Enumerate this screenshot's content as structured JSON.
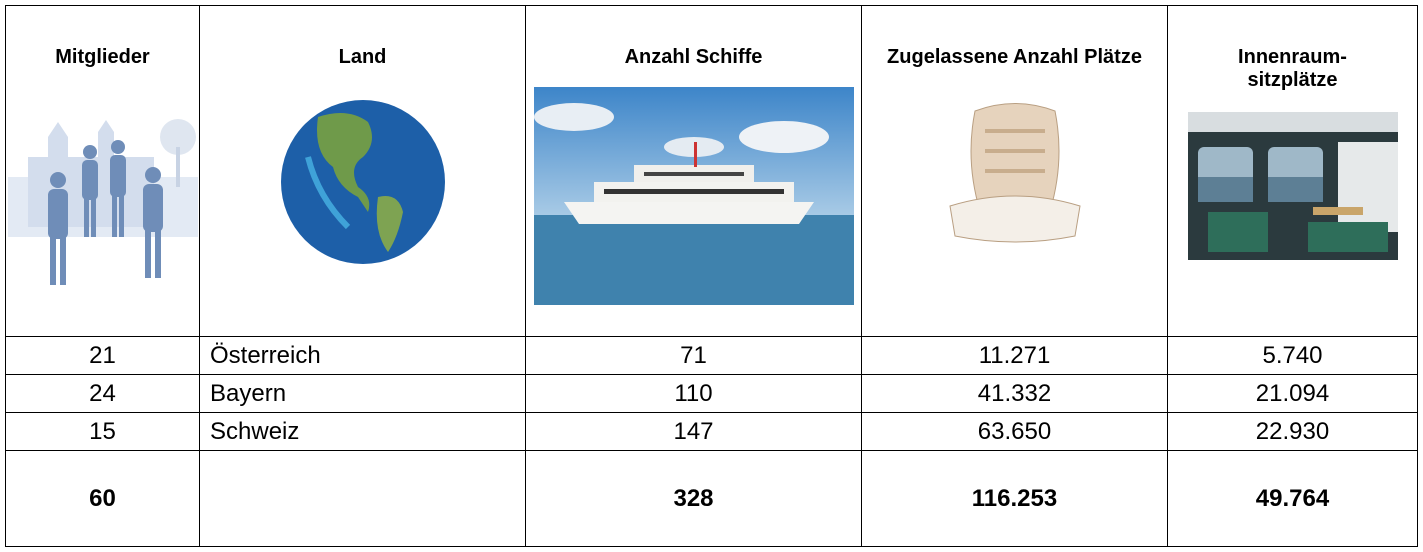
{
  "table": {
    "header": [
      "Mitglieder",
      "Land",
      "Anzahl Schiffe",
      "Zugelassene Anzahl Plätze",
      "Innenraum-sitzplätze"
    ],
    "rows": [
      [
        "21",
        "Österreich",
        "71",
        "11.271",
        "5.740"
      ],
      [
        "24",
        "Bayern",
        "110",
        "41.332",
        "21.094"
      ],
      [
        "15",
        "Schweiz",
        "147",
        "63.650",
        "22.930"
      ]
    ],
    "total": [
      "60",
      "328",
      "116.253",
      "49.764"
    ]
  }
}
